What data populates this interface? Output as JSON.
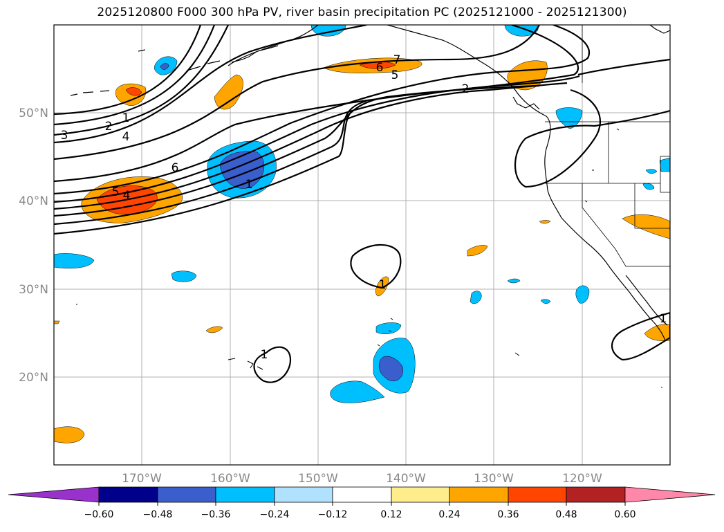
{
  "title": "2025120800 F000 300 hPa PV, river basin precipitation PC (2025121000 - 2025121300)",
  "colors": {
    "purple": "#9932cc",
    "navy": "#00008b",
    "blue_med": "#3a5fcd",
    "sky": "#00bfff",
    "light_sky": "#b0e2ff",
    "white": "#ffffff",
    "yellow": "#ffec8b",
    "orange": "#ffa500",
    "orange_red": "#ff4500",
    "firebrick": "#b22222",
    "pink": "#ff88aa"
  },
  "map": {
    "lat_labels": [
      "50°N",
      "40°N",
      "30°N",
      "20°N"
    ],
    "lon_labels": [
      "170°W",
      "160°W",
      "150°W",
      "140°W",
      "130°W",
      "120°W"
    ],
    "contour_labels": {
      "c1": "1",
      "c2": "2",
      "c3": "3",
      "c4": "4",
      "c6": "6",
      "c5b": "5",
      "c4b": "4",
      "c1b": "1",
      "c7": "7",
      "c6c": "6",
      "c5c": "5",
      "c2c": "2",
      "c1d": "1",
      "c1e": "1",
      "c1f": "1"
    }
  },
  "colorbar": {
    "ticks": [
      "−0.60",
      "−0.48",
      "−0.36",
      "−0.24",
      "−0.12",
      "0.12",
      "0.24",
      "0.36",
      "0.48",
      "0.60"
    ]
  }
}
